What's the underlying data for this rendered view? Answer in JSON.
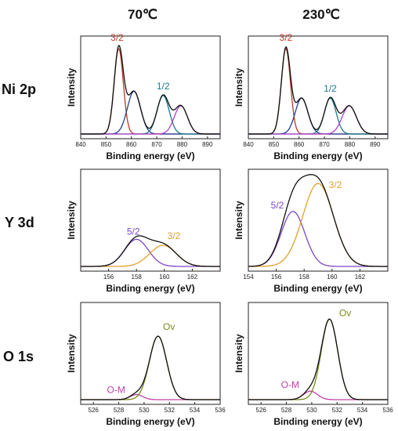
{
  "columns": [
    "70℃",
    "230℃"
  ],
  "rows": [
    "Ni 2p",
    "Y 3d",
    "O 1s"
  ],
  "colors": {
    "envelope": "#111111",
    "ni_3_2": "#c0392b",
    "ni_sat1": "#1f3f9a",
    "ni_1_2": "#1a7a8c",
    "ni_sat2": "#b040c8",
    "y_5_2": "#7b46c6",
    "y_3_2": "#e0a12a",
    "o_m": "#c040a8",
    "o_v": "#7a8a1a"
  },
  "chart_data": [
    {
      "type": "line",
      "panel": "Ni 2p 70℃",
      "xlabel": "Binding energy (eV)",
      "ylabel": "Intensity",
      "xlim": [
        840,
        895
      ],
      "xticks": [
        840,
        850,
        860,
        870,
        880,
        890
      ],
      "series": [
        {
          "name": "3/2",
          "peak": [
            855.0,
            1.0
          ],
          "sigma": 1.8,
          "label": true,
          "color": "ni_3_2"
        },
        {
          "name": "",
          "peak": [
            861.0,
            0.5
          ],
          "sigma": 2.6,
          "color": "ni_sat1"
        },
        {
          "name": "1/2",
          "peak": [
            872.5,
            0.45
          ],
          "sigma": 2.4,
          "label": true,
          "color": "ni_1_2"
        },
        {
          "name": "",
          "peak": [
            879.5,
            0.33
          ],
          "sigma": 2.6,
          "color": "ni_sat2"
        }
      ],
      "annotations": [
        "3/2",
        "1/2"
      ]
    },
    {
      "type": "line",
      "panel": "Ni 2p 230℃",
      "xlabel": "Binding energy (eV)",
      "ylabel": "Intensity",
      "xlim": [
        840,
        895
      ],
      "xticks": [
        840,
        850,
        860,
        870,
        880,
        890
      ],
      "series": [
        {
          "name": "3/2",
          "peak": [
            854.8,
            1.0
          ],
          "sigma": 1.8,
          "label": true,
          "color": "ni_3_2"
        },
        {
          "name": "",
          "peak": [
            861.0,
            0.42
          ],
          "sigma": 2.5,
          "color": "ni_sat1"
        },
        {
          "name": "1/2",
          "peak": [
            872.3,
            0.42
          ],
          "sigma": 2.3,
          "label": true,
          "color": "ni_1_2"
        },
        {
          "name": "",
          "peak": [
            879.8,
            0.33
          ],
          "sigma": 2.8,
          "color": "ni_sat2"
        }
      ],
      "annotations": [
        "3/2",
        "1/2"
      ]
    },
    {
      "type": "line",
      "panel": "Y 3d 70℃",
      "xlabel": "Binding energy (eV)",
      "ylabel": "Intensity",
      "xlim": [
        154,
        164
      ],
      "xticks": [
        156,
        158,
        160,
        162
      ],
      "series": [
        {
          "name": "5/2",
          "peak": [
            158.0,
            0.32
          ],
          "sigma": 0.85,
          "label": true,
          "color": "y_5_2"
        },
        {
          "name": "3/2",
          "peak": [
            159.9,
            0.25
          ],
          "sigma": 0.95,
          "label": true,
          "color": "y_3_2"
        }
      ],
      "annotations": [
        "5/2",
        "3/2"
      ]
    },
    {
      "type": "line",
      "panel": "Y 3d 230℃",
      "xlabel": "Binding energy (eV)",
      "ylabel": "Intensity",
      "xlim": [
        154,
        164
      ],
      "xticks": [
        154,
        156,
        158,
        160,
        162
      ],
      "series": [
        {
          "name": "5/2",
          "peak": [
            157.2,
            0.65
          ],
          "sigma": 0.85,
          "label": true,
          "color": "y_5_2"
        },
        {
          "name": "3/2",
          "peak": [
            159.0,
            0.98
          ],
          "sigma": 1.1,
          "label": true,
          "color": "y_3_2"
        }
      ],
      "annotations": [
        "5/2",
        "3/2"
      ]
    },
    {
      "type": "line",
      "panel": "O 1s 70℃",
      "xlabel": "Binding energy (eV)",
      "ylabel": "Intensity",
      "xlim": [
        525,
        536
      ],
      "xticks": [
        526,
        528,
        530,
        532,
        534,
        536
      ],
      "series": [
        {
          "name": "O-M",
          "peak": [
            529.4,
            0.06
          ],
          "sigma": 0.5,
          "label": true,
          "color": "o_m"
        },
        {
          "name": "Ov",
          "peak": [
            531.1,
            0.75
          ],
          "sigma": 0.68,
          "label": true,
          "color": "o_v"
        }
      ],
      "annotations": [
        "O-M",
        "Ov"
      ]
    },
    {
      "type": "line",
      "panel": "O 1s 230℃",
      "xlabel": "Binding energy (eV)",
      "ylabel": "Intensity",
      "xlim": [
        525,
        536
      ],
      "xticks": [
        526,
        528,
        530,
        532,
        534,
        536
      ],
      "series": [
        {
          "name": "O-M",
          "peak": [
            529.9,
            0.1
          ],
          "sigma": 0.55,
          "label": true,
          "color": "o_m"
        },
        {
          "name": "Ov",
          "peak": [
            531.4,
            0.95
          ],
          "sigma": 0.65,
          "label": true,
          "color": "o_v"
        }
      ],
      "annotations": [
        "O-M",
        "Ov"
      ]
    }
  ]
}
